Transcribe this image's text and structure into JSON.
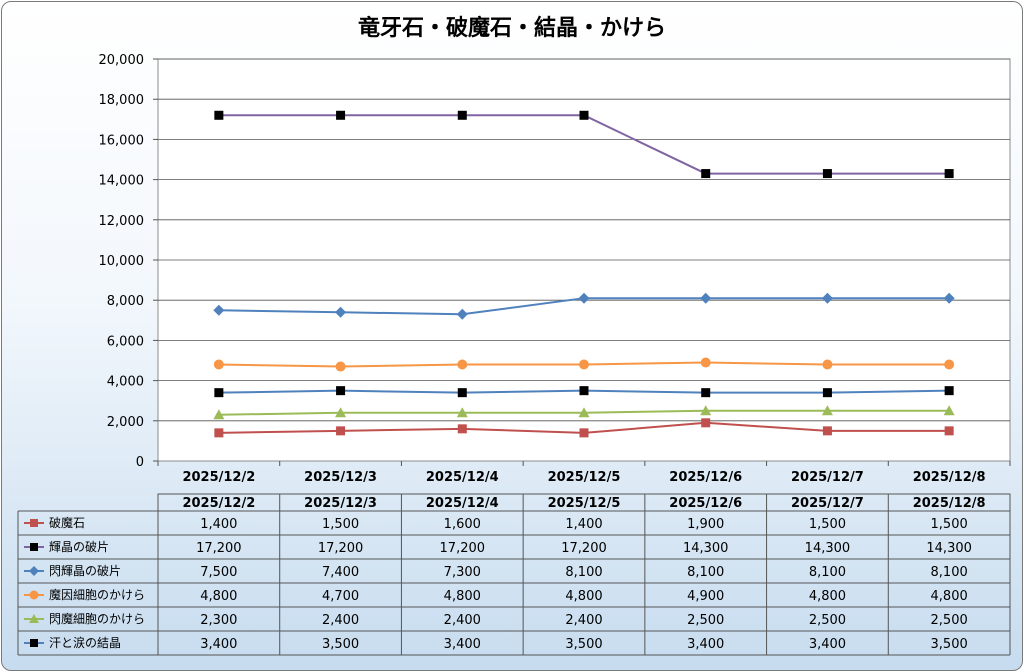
{
  "chart_data": {
    "type": "line",
    "title": "竜牙石・破魔石・結晶・かけら",
    "categories": [
      "2025/12/2",
      "2025/12/3",
      "2025/12/4",
      "2025/12/5",
      "2025/12/6",
      "2025/12/7",
      "2025/12/8"
    ],
    "ylim": [
      0,
      20000
    ],
    "yticks": [
      "0",
      "2,000",
      "4,000",
      "6,000",
      "8,000",
      "10,000",
      "12,000",
      "14,000",
      "16,000",
      "18,000",
      "20,000"
    ],
    "grid": true,
    "legend": "data-table",
    "series": [
      {
        "name": "破魔石",
        "color": "#c0504d",
        "marker": "square",
        "values": [
          1400,
          1500,
          1600,
          1400,
          1900,
          1500,
          1500
        ],
        "labels": [
          "1,400",
          "1,500",
          "1,600",
          "1,400",
          "1,900",
          "1,500",
          "1,500"
        ]
      },
      {
        "name": "輝晶の破片",
        "color": "#8064a2",
        "marker": "square-black",
        "values": [
          17200,
          17200,
          17200,
          17200,
          14300,
          14300,
          14300
        ],
        "labels": [
          "17,200",
          "17,200",
          "17,200",
          "17,200",
          "14,300",
          "14,300",
          "14,300"
        ]
      },
      {
        "name": "閃輝晶の破片",
        "color": "#4f81bd",
        "marker": "diamond",
        "values": [
          7500,
          7400,
          7300,
          8100,
          8100,
          8100,
          8100
        ],
        "labels": [
          "7,500",
          "7,400",
          "7,300",
          "8,100",
          "8,100",
          "8,100",
          "8,100"
        ]
      },
      {
        "name": "魔因細胞のかけら",
        "color": "#f79646",
        "marker": "circle",
        "values": [
          4800,
          4700,
          4800,
          4800,
          4900,
          4800,
          4800
        ],
        "labels": [
          "4,800",
          "4,700",
          "4,800",
          "4,800",
          "4,900",
          "4,800",
          "4,800"
        ]
      },
      {
        "name": "閃魔細胞のかけら",
        "color": "#9bbb59",
        "marker": "triangle",
        "values": [
          2300,
          2400,
          2400,
          2400,
          2500,
          2500,
          2500
        ],
        "labels": [
          "2,300",
          "2,400",
          "2,400",
          "2,400",
          "2,500",
          "2,500",
          "2,500"
        ]
      },
      {
        "name": "汗と涙の結晶",
        "color": "#4f81bd",
        "marker": "square-black",
        "values": [
          3400,
          3500,
          3400,
          3500,
          3400,
          3400,
          3500
        ],
        "labels": [
          "3,400",
          "3,500",
          "3,400",
          "3,500",
          "3,400",
          "3,400",
          "3,500"
        ]
      }
    ]
  }
}
